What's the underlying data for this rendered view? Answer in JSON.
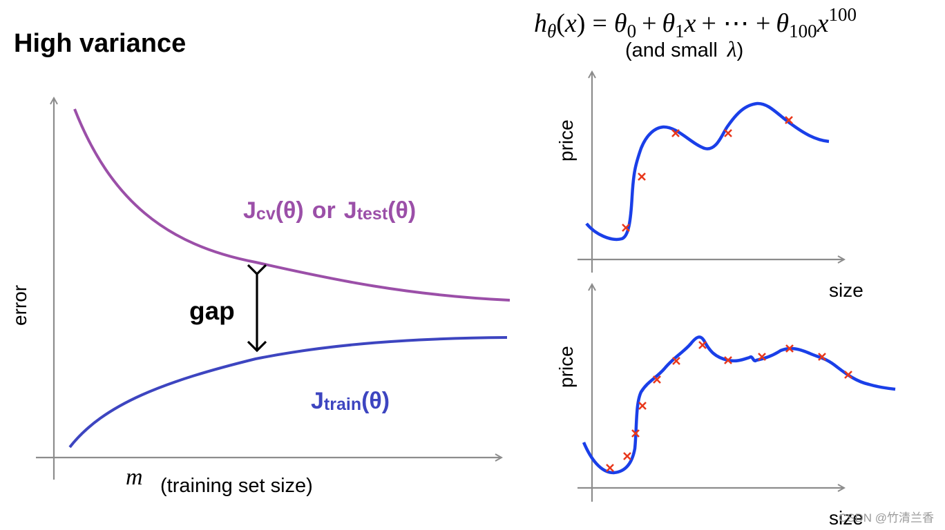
{
  "title": "High variance",
  "formula": {
    "h": "h",
    "theta": "θ",
    "x": "x",
    "eq": "=",
    "term0": "θ",
    "sub0": "0",
    "plus": "+",
    "term1": "θ",
    "sub1": "1",
    "dots": "+ ⋯ +",
    "term100": "θ",
    "sub100": "100",
    "pow": "100"
  },
  "small_lambda": {
    "prefix": "(and small",
    "lambda": "λ",
    "suffix": ")"
  },
  "learning_curve": {
    "ylabel": "error",
    "xlabel_var": "m",
    "xlabel": "(training set size)",
    "gap_label": "gap",
    "cv_label": {
      "J1": "J",
      "cv": "cv",
      "theta1": "(θ)",
      "or": "or",
      "J2": "J",
      "test": "test",
      "theta2": "(θ)"
    },
    "train_label": {
      "J": "J",
      "train": "train",
      "theta": "(θ)"
    },
    "colors": {
      "cv": "#9B4FA8",
      "train": "#3D45C0",
      "axis": "#8c8c8c"
    }
  },
  "plot_top": {
    "ylabel": "price",
    "xlabel": "size",
    "points_color": "#E8381C",
    "curve_color": "#1A3FE8"
  },
  "plot_bottom": {
    "ylabel": "price",
    "xlabel": "size",
    "points_color": "#E8381C",
    "curve_color": "#1A3FE8"
  },
  "watermark": "CSDN @竹清兰香"
}
